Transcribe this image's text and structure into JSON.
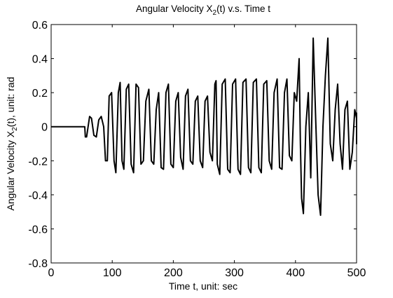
{
  "chart_data": {
    "type": "line",
    "title": {
      "main": "Angular Velocity X",
      "sub": "2",
      "tail": "(t)  v.s.  Time t"
    },
    "xlabel": "Time t, unit: sec",
    "ylabel": {
      "main": "Angular Velocity X",
      "sub": "2",
      "tail": "(t), unit: rad"
    },
    "xlim": [
      0,
      500
    ],
    "ylim": [
      -0.8,
      0.6
    ],
    "xticks": [
      0,
      100,
      200,
      300,
      400,
      500
    ],
    "xtick_labels": [
      "0",
      "100",
      "200",
      "300",
      "400",
      "500"
    ],
    "yticks": [
      -0.8,
      -0.6,
      -0.4,
      -0.2,
      0,
      0.2,
      0.4,
      0.6
    ],
    "ytick_labels": [
      "-0.8",
      "-0.6",
      "-0.4",
      "-0.2",
      "0",
      "0.2",
      "0.4",
      "0.6"
    ],
    "grid": false,
    "line_color": "#000000",
    "series": [
      {
        "x": [
          0,
          55,
          56,
          58,
          63,
          66,
          70,
          74,
          78,
          82,
          86,
          89,
          92,
          95,
          99,
          103,
          106,
          110,
          113,
          116,
          119,
          123,
          127,
          131,
          135,
          139,
          143,
          147,
          151,
          155,
          160,
          164,
          168,
          172,
          176,
          180,
          184,
          188,
          192,
          196,
          200,
          204,
          208,
          212,
          216,
          220,
          224,
          228,
          232,
          236,
          240,
          244,
          248,
          252,
          256,
          260,
          264,
          268,
          270,
          272,
          276,
          280,
          285,
          289,
          293,
          297,
          302,
          306,
          310,
          314,
          319,
          323,
          327,
          331,
          336,
          340,
          344,
          348,
          353,
          357,
          361,
          365,
          370,
          374,
          378,
          382,
          386,
          390,
          394,
          398,
          402,
          406,
          408,
          410,
          413,
          417,
          421,
          425,
          429,
          433,
          437,
          441,
          445,
          449,
          453,
          457,
          461,
          465,
          469,
          473,
          477,
          481,
          485,
          489,
          493,
          497,
          501,
          505,
          509,
          512
        ],
        "y": [
          0,
          0,
          -0.06,
          -0.06,
          0.06,
          0.05,
          -0.05,
          -0.06,
          0.04,
          0.06,
          0.0,
          -0.2,
          -0.2,
          0.18,
          0.2,
          -0.2,
          -0.27,
          0.2,
          0.26,
          -0.2,
          -0.25,
          0.22,
          0.25,
          -0.22,
          -0.27,
          0.25,
          0.23,
          -0.22,
          -0.2,
          0.15,
          0.22,
          -0.2,
          -0.22,
          0.1,
          0.2,
          -0.24,
          -0.25,
          0.2,
          0.25,
          -0.22,
          -0.24,
          0.15,
          0.2,
          -0.18,
          -0.25,
          0.18,
          0.22,
          -0.2,
          -0.22,
          0.15,
          0.18,
          -0.2,
          -0.24,
          0.15,
          0.18,
          -0.15,
          -0.2,
          0.25,
          0.27,
          -0.22,
          -0.28,
          0.25,
          0.28,
          -0.25,
          -0.27,
          0.25,
          0.28,
          -0.25,
          -0.28,
          0.26,
          0.28,
          -0.24,
          -0.27,
          0.26,
          0.28,
          -0.24,
          -0.27,
          0.25,
          0.27,
          -0.2,
          -0.25,
          0.2,
          0.28,
          -0.24,
          -0.25,
          0.2,
          0.28,
          -0.17,
          -0.2,
          0.2,
          0.15,
          0.4,
          -0.1,
          -0.42,
          -0.51,
          0.0,
          0.2,
          -0.3,
          0.52,
          0.05,
          -0.4,
          -0.52,
          0.0,
          0.3,
          0.52,
          -0.1,
          -0.2,
          0.1,
          0.25,
          -0.1,
          -0.25,
          0.1,
          0.15,
          -0.25,
          -0.15,
          0.1,
          0.05,
          -0.1,
          0.08,
          0.0
        ]
      }
    ]
  }
}
